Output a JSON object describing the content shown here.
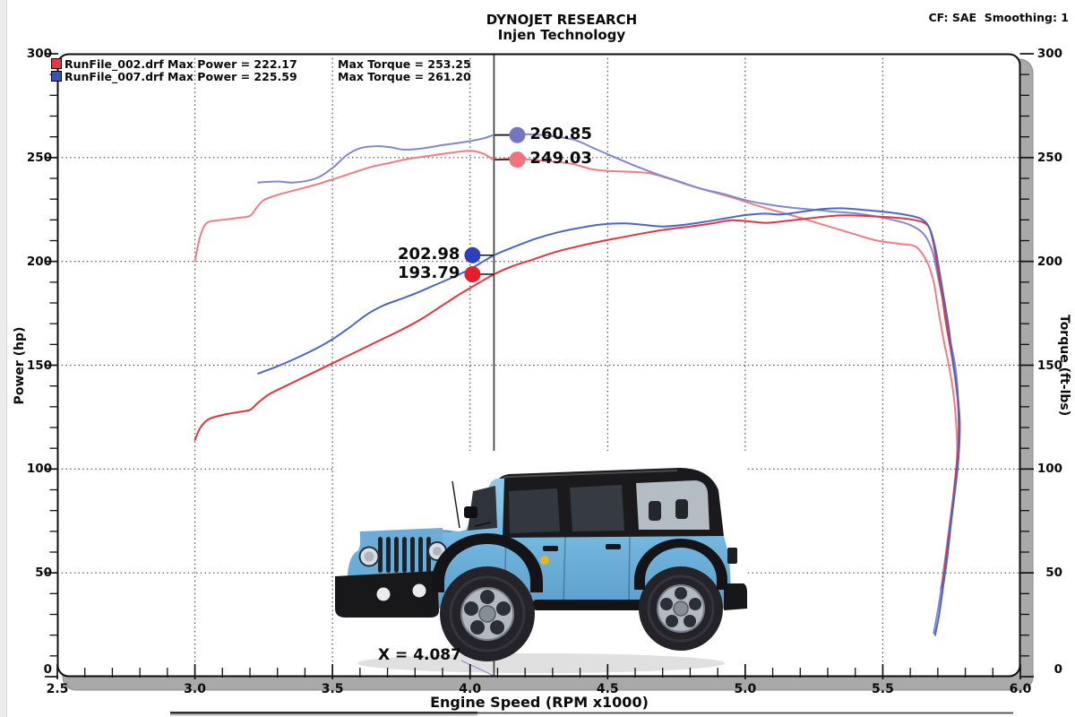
{
  "header": {
    "title": "DYNOJET RESEARCH",
    "subtitle": "Injen Technology",
    "cf_note": "CF: SAE  Smoothing: 1"
  },
  "legend": {
    "rows": [
      {
        "file": "RunFile_002.drf",
        "power_label": "Max Power = 222.17",
        "torque_label": "Max Torque = 253.25",
        "max_power": 222.17,
        "max_torque": 253.25,
        "swatch_color": "#e63840"
      },
      {
        "file": "RunFile_007.drf",
        "power_label": "Max Power = 225.59",
        "torque_label": "Max Torque = 261.20",
        "max_power": 225.59,
        "max_torque": 261.2,
        "swatch_color": "#3a50bd"
      }
    ]
  },
  "axes": {
    "left_title": "Power (hp)",
    "right_title": "Torque (ft-lbs)",
    "bottom_title": "Engine Speed (RPM x1000)"
  },
  "cursor": {
    "x_label": "X = 4.087",
    "rpm": 4.087,
    "readouts": [
      {
        "series": "RunFile_007 Torque",
        "label": "260.85",
        "value": 260.85,
        "side": "right",
        "dot_color": "#7177c5"
      },
      {
        "series": "RunFile_002 Torque",
        "label": "249.03",
        "value": 249.03,
        "side": "right",
        "dot_color": "#f3737d"
      },
      {
        "series": "RunFile_007 Power",
        "label": "202.98",
        "value": 202.98,
        "side": "left",
        "dot_color": "#2b40ba"
      },
      {
        "series": "RunFile_002 Power",
        "label": "193.79",
        "value": 193.79,
        "side": "left",
        "dot_color": "#e51e29"
      }
    ]
  },
  "chart_data": {
    "type": "line",
    "title": "DYNOJET RESEARCH - Injen Technology",
    "xlabel": "Engine Speed (RPM x1000)",
    "ylabel_left": "Power (hp)",
    "ylabel_right": "Torque (ft-lbs)",
    "xlim": [
      2.5,
      6.0
    ],
    "ylim": [
      0,
      300
    ],
    "x_major_ticks": [
      2.5,
      3.0,
      3.5,
      4.0,
      4.5,
      5.0,
      5.5,
      6.0
    ],
    "y_major_ticks": [
      0,
      50,
      100,
      150,
      200,
      250,
      300
    ],
    "x_minor_step": 0.1,
    "y_minor_step": 10,
    "grid": "dotted",
    "grid_color": "#4a4a4a",
    "cursor_rpm": 4.087,
    "legend_position": "top-left",
    "series": [
      {
        "name": "RunFile_002 Torque",
        "axis": "torque",
        "color": "#ef7d85",
        "max": 253.25,
        "points": [
          [
            3.0,
            200
          ],
          [
            3.015,
            210
          ],
          [
            3.03,
            216
          ],
          [
            3.05,
            219
          ],
          [
            3.1,
            220
          ],
          [
            3.16,
            221
          ],
          [
            3.2,
            222
          ],
          [
            3.225,
            226
          ],
          [
            3.25,
            229.5
          ],
          [
            3.3,
            232
          ],
          [
            3.37,
            234.5
          ],
          [
            3.44,
            237
          ],
          [
            3.5,
            239.5
          ],
          [
            3.57,
            242.5
          ],
          [
            3.64,
            245.5
          ],
          [
            3.71,
            247.5
          ],
          [
            3.78,
            249.5
          ],
          [
            3.86,
            251
          ],
          [
            3.93,
            252.3
          ],
          [
            4.0,
            253.25
          ],
          [
            4.05,
            251.8
          ],
          [
            4.087,
            249.03
          ],
          [
            4.13,
            249.4
          ],
          [
            4.2,
            249.2
          ],
          [
            4.28,
            248.3
          ],
          [
            4.37,
            247
          ],
          [
            4.44,
            244.5
          ],
          [
            4.5,
            243.6
          ],
          [
            4.58,
            243.2
          ],
          [
            4.65,
            242.5
          ],
          [
            4.72,
            240
          ],
          [
            4.8,
            236.5
          ],
          [
            4.88,
            233.5
          ],
          [
            4.96,
            230.5
          ],
          [
            5.04,
            227
          ],
          [
            5.12,
            224
          ],
          [
            5.2,
            221
          ],
          [
            5.3,
            217
          ],
          [
            5.4,
            213
          ],
          [
            5.48,
            210
          ],
          [
            5.56,
            208.5
          ],
          [
            5.62,
            207
          ],
          [
            5.66,
            200
          ],
          [
            5.685,
            190
          ],
          [
            5.7,
            178
          ],
          [
            5.72,
            163
          ],
          [
            5.74,
            150
          ],
          [
            5.755,
            138
          ],
          [
            5.765,
            125
          ],
          [
            5.77,
            110
          ],
          [
            5.765,
            96
          ],
          [
            5.75,
            80
          ],
          [
            5.735,
            62
          ],
          [
            5.72,
            48
          ],
          [
            5.71,
            42
          ]
        ]
      },
      {
        "name": "RunFile_007 Torque",
        "axis": "torque",
        "color": "#8188cb",
        "max": 261.2,
        "points": [
          [
            3.23,
            238
          ],
          [
            3.3,
            238.5
          ],
          [
            3.36,
            238
          ],
          [
            3.44,
            240
          ],
          [
            3.5,
            245
          ],
          [
            3.55,
            251
          ],
          [
            3.6,
            254.5
          ],
          [
            3.66,
            255.5
          ],
          [
            3.71,
            255
          ],
          [
            3.76,
            253.8
          ],
          [
            3.82,
            254.3
          ],
          [
            3.9,
            256
          ],
          [
            3.98,
            257.5
          ],
          [
            4.05,
            259.3
          ],
          [
            4.087,
            260.85
          ],
          [
            4.15,
            261.0
          ],
          [
            4.22,
            261.2
          ],
          [
            4.3,
            260.3
          ],
          [
            4.38,
            258.5
          ],
          [
            4.45,
            254.5
          ],
          [
            4.52,
            250.5
          ],
          [
            4.6,
            246
          ],
          [
            4.68,
            242
          ],
          [
            4.76,
            238.5
          ],
          [
            4.84,
            235
          ],
          [
            4.92,
            232.5
          ],
          [
            5.0,
            229.5
          ],
          [
            5.08,
            227.5
          ],
          [
            5.16,
            226
          ],
          [
            5.24,
            225
          ],
          [
            5.32,
            224
          ],
          [
            5.42,
            222.8
          ],
          [
            5.52,
            220.5
          ],
          [
            5.6,
            217.5
          ],
          [
            5.65,
            213
          ],
          [
            5.68,
            205
          ],
          [
            5.7,
            193
          ],
          [
            5.72,
            180
          ],
          [
            5.745,
            162
          ],
          [
            5.765,
            148
          ],
          [
            5.775,
            130
          ],
          [
            5.775,
            112
          ],
          [
            5.765,
            98
          ],
          [
            5.755,
            86
          ],
          [
            5.74,
            70
          ],
          [
            5.725,
            55
          ],
          [
            5.71,
            40
          ],
          [
            5.695,
            28
          ],
          [
            5.685,
            21
          ]
        ]
      },
      {
        "name": "RunFile_002 Power",
        "axis": "power",
        "color": "#e2353f",
        "max": 222.17,
        "points": [
          [
            3.0,
            114
          ],
          [
            3.02,
            120
          ],
          [
            3.05,
            124
          ],
          [
            3.1,
            126
          ],
          [
            3.16,
            127.5
          ],
          [
            3.2,
            128.5
          ],
          [
            3.23,
            132
          ],
          [
            3.27,
            136
          ],
          [
            3.33,
            140
          ],
          [
            3.4,
            144.5
          ],
          [
            3.47,
            149
          ],
          [
            3.54,
            153.5
          ],
          [
            3.61,
            158
          ],
          [
            3.68,
            162.5
          ],
          [
            3.75,
            167
          ],
          [
            3.82,
            172
          ],
          [
            3.89,
            178
          ],
          [
            3.96,
            184
          ],
          [
            4.03,
            189.5
          ],
          [
            4.087,
            193.79
          ],
          [
            4.15,
            197.5
          ],
          [
            4.23,
            201
          ],
          [
            4.31,
            204.5
          ],
          [
            4.4,
            207.5
          ],
          [
            4.48,
            209.8
          ],
          [
            4.56,
            211.8
          ],
          [
            4.64,
            213.8
          ],
          [
            4.72,
            215.5
          ],
          [
            4.8,
            216.8
          ],
          [
            4.88,
            218.3
          ],
          [
            4.95,
            219.8
          ],
          [
            5.02,
            219.2
          ],
          [
            5.08,
            218.6
          ],
          [
            5.15,
            219.5
          ],
          [
            5.25,
            221
          ],
          [
            5.35,
            222.17
          ],
          [
            5.45,
            221.8
          ],
          [
            5.55,
            221
          ],
          [
            5.62,
            219.8
          ],
          [
            5.665,
            217
          ],
          [
            5.685,
            208
          ],
          [
            5.7,
            196
          ],
          [
            5.715,
            184
          ],
          [
            5.73,
            170
          ],
          [
            5.75,
            155
          ],
          [
            5.765,
            142
          ],
          [
            5.775,
            128
          ],
          [
            5.775,
            112
          ],
          [
            5.765,
            97
          ],
          [
            5.755,
            84
          ],
          [
            5.74,
            68
          ],
          [
            5.725,
            52
          ],
          [
            5.715,
            43
          ]
        ]
      },
      {
        "name": "RunFile_007 Power",
        "axis": "power",
        "color": "#4c66c5",
        "max": 225.59,
        "points": [
          [
            3.23,
            146
          ],
          [
            3.3,
            149.5
          ],
          [
            3.37,
            153.5
          ],
          [
            3.44,
            158
          ],
          [
            3.5,
            162.5
          ],
          [
            3.56,
            168
          ],
          [
            3.62,
            174
          ],
          [
            3.68,
            178.5
          ],
          [
            3.74,
            181.5
          ],
          [
            3.8,
            184.5
          ],
          [
            3.87,
            188.5
          ],
          [
            3.94,
            192.5
          ],
          [
            4.01,
            197
          ],
          [
            4.087,
            202.98
          ],
          [
            4.16,
            207
          ],
          [
            4.24,
            211
          ],
          [
            4.32,
            214
          ],
          [
            4.4,
            216.2
          ],
          [
            4.48,
            217.8
          ],
          [
            4.56,
            218.3
          ],
          [
            4.63,
            217.6
          ],
          [
            4.7,
            216.8
          ],
          [
            4.77,
            217.5
          ],
          [
            4.85,
            219
          ],
          [
            4.93,
            220.8
          ],
          [
            5.0,
            222.3
          ],
          [
            5.07,
            223
          ],
          [
            5.13,
            222.6
          ],
          [
            5.2,
            223.8
          ],
          [
            5.28,
            225.2
          ],
          [
            5.35,
            225.59
          ],
          [
            5.43,
            224.8
          ],
          [
            5.51,
            223.8
          ],
          [
            5.58,
            222.5
          ],
          [
            5.64,
            220.5
          ],
          [
            5.67,
            216
          ],
          [
            5.69,
            207
          ],
          [
            5.705,
            196
          ],
          [
            5.72,
            184
          ],
          [
            5.74,
            168
          ],
          [
            5.755,
            152
          ],
          [
            5.77,
            138
          ],
          [
            5.78,
            122
          ],
          [
            5.775,
            105
          ],
          [
            5.765,
            92
          ],
          [
            5.75,
            76
          ],
          [
            5.735,
            58
          ],
          [
            5.72,
            44
          ],
          [
            5.705,
            30
          ],
          [
            5.69,
            20
          ]
        ]
      }
    ]
  }
}
